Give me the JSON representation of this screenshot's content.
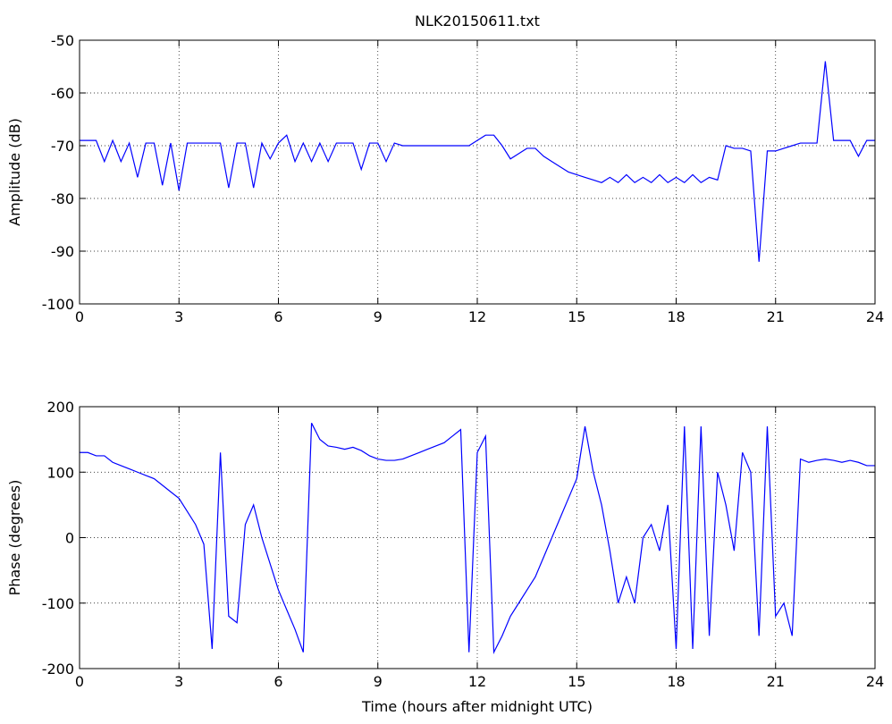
{
  "chart_data": [
    {
      "type": "line",
      "title": "NLK20150611.txt",
      "ylabel": "Amplitude (dB)",
      "xlim": [
        0,
        24
      ],
      "xticks": [
        0,
        3,
        6,
        9,
        12,
        15,
        18,
        21,
        24
      ],
      "ylim": [
        -100,
        -50
      ],
      "yticks": [
        -100,
        -90,
        -80,
        -70,
        -60,
        -50
      ],
      "grid": true,
      "x": [
        0,
        0.25,
        0.5,
        0.75,
        1,
        1.25,
        1.5,
        1.75,
        2,
        2.25,
        2.5,
        2.75,
        3,
        3.25,
        3.5,
        3.75,
        4,
        4.25,
        4.5,
        4.75,
        5,
        5.25,
        5.5,
        5.75,
        6,
        6.25,
        6.5,
        6.75,
        7,
        7.25,
        7.5,
        7.75,
        8,
        8.25,
        8.5,
        8.75,
        9,
        9.25,
        9.5,
        9.75,
        10,
        10.25,
        10.5,
        10.75,
        11,
        11.25,
        11.5,
        11.75,
        12,
        12.25,
        12.5,
        12.75,
        13,
        13.25,
        13.5,
        13.75,
        14,
        14.25,
        14.5,
        14.75,
        15,
        15.25,
        15.5,
        15.75,
        16,
        16.25,
        16.5,
        16.75,
        17,
        17.25,
        17.5,
        17.75,
        18,
        18.25,
        18.5,
        18.75,
        19,
        19.25,
        19.5,
        19.75,
        20,
        20.25,
        20.5,
        20.75,
        21,
        21.25,
        21.5,
        21.75,
        22,
        22.25,
        22.5,
        22.75,
        23,
        23.25,
        23.5,
        23.75,
        24
      ],
      "series": [
        {
          "color": "#0000ff",
          "values": [
            -69,
            -69,
            -69,
            -73,
            -69,
            -73,
            -69.5,
            -76,
            -69.5,
            -69.5,
            -77.5,
            -69.5,
            -78.5,
            -69.5,
            -69.5,
            -69.5,
            -69.5,
            -69.5,
            -78,
            -69.5,
            -69.5,
            -78,
            -69.5,
            -72.5,
            -69.5,
            -68,
            -73,
            -69.5,
            -73,
            -69.5,
            -73,
            -69.5,
            -69.5,
            -69.5,
            -74.5,
            -69.5,
            -69.5,
            -73,
            -69.5,
            -70,
            -70,
            -70,
            -70,
            -70,
            -70,
            -70,
            -70,
            -70,
            -69,
            -68,
            -68,
            -70,
            -72.5,
            -71.5,
            -70.5,
            -70.5,
            -72,
            -73,
            -74,
            -75,
            -75.5,
            -76,
            -76.5,
            -77,
            -76,
            -77,
            -75.5,
            -77,
            -76,
            -77,
            -75.5,
            -77,
            -76,
            -77,
            -75.5,
            -77,
            -76,
            -76.5,
            -70,
            -70.5,
            -70.5,
            -71,
            -92,
            -71,
            -71,
            -70.5,
            -70,
            -69.5,
            -69.5,
            -69.5,
            -54,
            -69,
            -69,
            -69,
            -72,
            -69,
            -69
          ]
        }
      ]
    },
    {
      "type": "line",
      "ylabel": "Phase (degrees)",
      "xlabel": "Time (hours after midnight UTC)",
      "xlim": [
        0,
        24
      ],
      "xticks": [
        0,
        3,
        6,
        9,
        12,
        15,
        18,
        21,
        24
      ],
      "ylim": [
        -200,
        200
      ],
      "yticks": [
        -200,
        -100,
        0,
        100,
        200
      ],
      "grid": true,
      "x": [
        0,
        0.25,
        0.5,
        0.75,
        1,
        1.25,
        1.5,
        1.75,
        2,
        2.25,
        2.5,
        2.75,
        3,
        3.25,
        3.5,
        3.75,
        4,
        4.25,
        4.5,
        4.75,
        5,
        5.25,
        5.5,
        5.75,
        6,
        6.25,
        6.5,
        6.75,
        7,
        7.25,
        7.5,
        7.75,
        8,
        8.25,
        8.5,
        8.75,
        9,
        9.25,
        9.5,
        9.75,
        10,
        10.25,
        10.5,
        10.75,
        11,
        11.25,
        11.5,
        11.75,
        12,
        12.25,
        12.5,
        12.75,
        13,
        13.25,
        13.5,
        13.75,
        14,
        14.25,
        14.5,
        14.75,
        15,
        15.25,
        15.5,
        15.75,
        16,
        16.25,
        16.5,
        16.75,
        17,
        17.25,
        17.5,
        17.75,
        18,
        18.25,
        18.5,
        18.75,
        19,
        19.25,
        19.5,
        19.75,
        20,
        20.25,
        20.5,
        20.75,
        21,
        21.25,
        21.5,
        21.75,
        22,
        22.25,
        22.5,
        22.75,
        23,
        23.25,
        23.5,
        23.75,
        24
      ],
      "series": [
        {
          "color": "#0000ff",
          "values": [
            130,
            130,
            125,
            125,
            115,
            110,
            105,
            100,
            95,
            90,
            80,
            70,
            60,
            40,
            20,
            -10,
            -170,
            130,
            -120,
            -130,
            20,
            50,
            0,
            -40,
            -80,
            -110,
            -140,
            -175,
            175,
            150,
            140,
            138,
            135,
            138,
            133,
            125,
            120,
            118,
            118,
            120,
            125,
            130,
            135,
            140,
            145,
            155,
            165,
            -175,
            130,
            155,
            -175,
            -150,
            -120,
            -100,
            -80,
            -60,
            -30,
            0,
            30,
            60,
            90,
            170,
            100,
            50,
            -20,
            -100,
            -60,
            -100,
            0,
            20,
            -20,
            50,
            -170,
            170,
            -170,
            170,
            -150,
            100,
            50,
            -20,
            130,
            100,
            -150,
            170,
            -120,
            -100,
            -150,
            120,
            115,
            118,
            120,
            118,
            115,
            118,
            115,
            110,
            110
          ]
        }
      ]
    }
  ]
}
